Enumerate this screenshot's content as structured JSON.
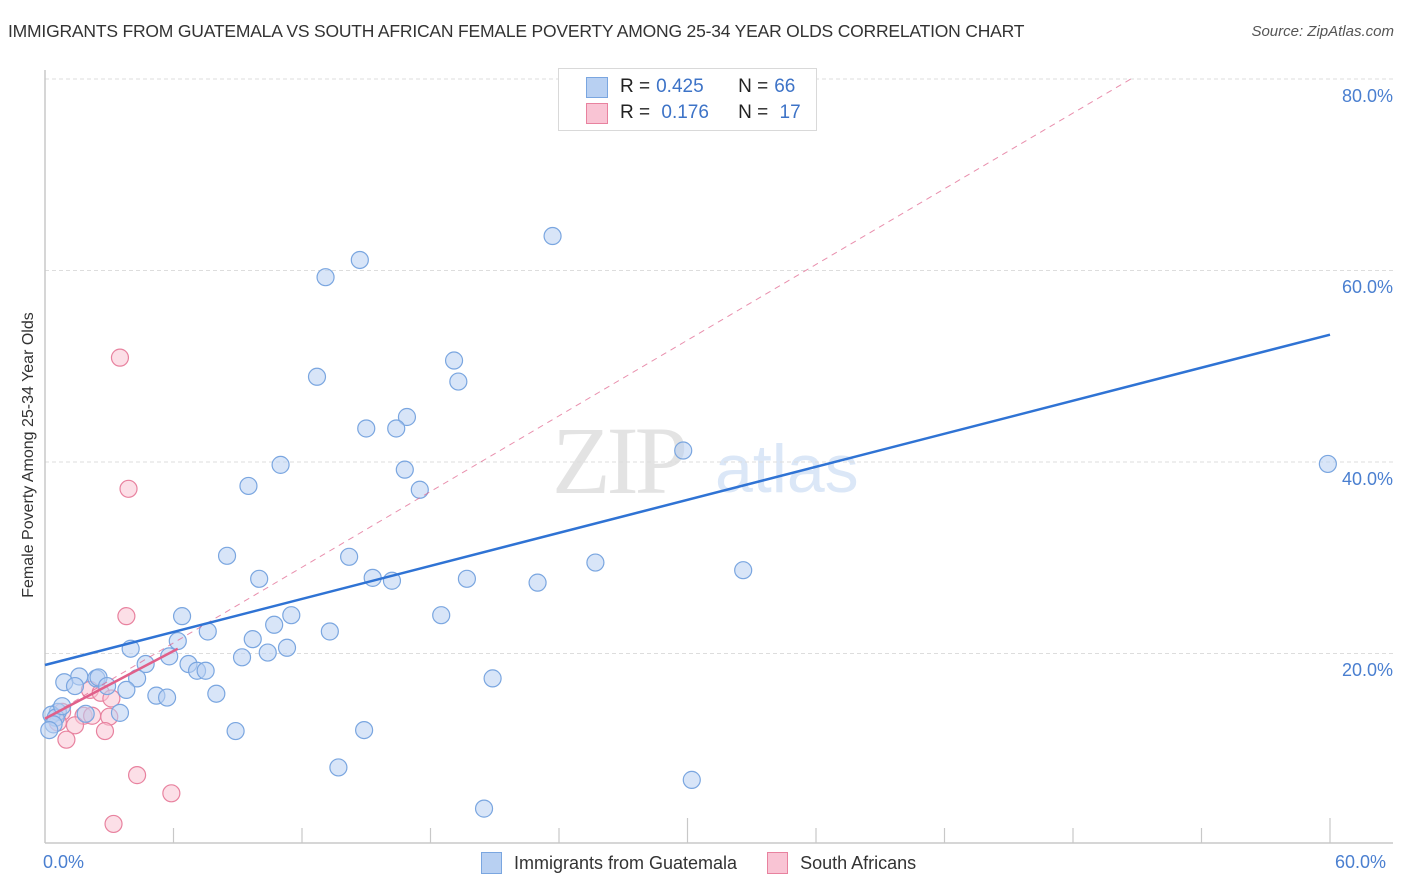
{
  "header": {
    "title": "IMMIGRANTS FROM GUATEMALA VS SOUTH AFRICAN FEMALE POVERTY AMONG 25-34 YEAR OLDS CORRELATION CHART",
    "source": "Source: ZipAtlas.com"
  },
  "axes": {
    "ylabel": "Female Poverty Among 25-34 Year Olds",
    "x_min_label": "0.0%",
    "x_max_label": "60.0%",
    "y_ticks": [
      "80.0%",
      "60.0%",
      "40.0%",
      "20.0%"
    ]
  },
  "legend": {
    "rows": [
      {
        "r_label": "R = ",
        "r_value": "0.425",
        "n_label": "N = ",
        "n_value": "66"
      },
      {
        "r_label": "R = ",
        "r_value": " 0.176",
        "n_label": "N = ",
        "n_value": " 17"
      }
    ],
    "series": [
      {
        "label": "Immigrants from Guatemala",
        "fill": "#b8d0f2",
        "stroke": "#7aa6e0"
      },
      {
        "label": "South Africans",
        "fill": "#f9c4d4",
        "stroke": "#e8829f"
      }
    ]
  },
  "watermark": {
    "zip": "ZIP",
    "atlas": "atlas"
  },
  "colors": {
    "blue_line": "#2f73d4",
    "pink_line": "#e0608a",
    "tick_label": "#4a7fd0",
    "grid": "#dddddd"
  },
  "chart_data": {
    "type": "scatter",
    "title": "IMMIGRANTS FROM GUATEMALA VS SOUTH AFRICAN FEMALE POVERTY AMONG 25-34 YEAR OLDS CORRELATION CHART",
    "xlabel": "",
    "ylabel": "Female Poverty Among 25-34 Year Olds",
    "xlim": [
      0,
      60
    ],
    "ylim": [
      0,
      80
    ],
    "x_ticks": [
      0,
      60
    ],
    "y_ticks": [
      20,
      40,
      60,
      80
    ],
    "grid": true,
    "legend_position": "top-center and bottom",
    "series": [
      {
        "name": "Immigrants from Guatemala",
        "R": 0.425,
        "N": 66,
        "trend": {
          "x": [
            0,
            60
          ],
          "y": [
            18.8,
            53.3
          ]
        },
        "points": [
          [
            23.7,
            63.6
          ],
          [
            14.7,
            61.1
          ],
          [
            13.1,
            59.3
          ],
          [
            19.1,
            50.6
          ],
          [
            19.3,
            48.4
          ],
          [
            12.7,
            48.9
          ],
          [
            16.9,
            44.7
          ],
          [
            15.0,
            43.5
          ],
          [
            16.4,
            43.5
          ],
          [
            29.8,
            41.2
          ],
          [
            59.9,
            39.8
          ],
          [
            11.0,
            39.7
          ],
          [
            16.8,
            39.2
          ],
          [
            17.5,
            37.1
          ],
          [
            9.5,
            37.5
          ],
          [
            8.5,
            30.2
          ],
          [
            14.2,
            30.1
          ],
          [
            25.7,
            29.5
          ],
          [
            32.6,
            28.7
          ],
          [
            10.0,
            27.8
          ],
          [
            15.3,
            27.9
          ],
          [
            16.2,
            27.6
          ],
          [
            19.7,
            27.8
          ],
          [
            23.0,
            27.4
          ],
          [
            6.4,
            23.9
          ],
          [
            11.5,
            24.0
          ],
          [
            18.5,
            24.0
          ],
          [
            7.6,
            22.3
          ],
          [
            13.3,
            22.3
          ],
          [
            10.7,
            23.0
          ],
          [
            6.2,
            21.3
          ],
          [
            9.7,
            21.5
          ],
          [
            11.3,
            20.6
          ],
          [
            4.0,
            20.5
          ],
          [
            9.2,
            19.6
          ],
          [
            10.4,
            20.1
          ],
          [
            5.8,
            19.7
          ],
          [
            4.7,
            18.9
          ],
          [
            6.7,
            18.9
          ],
          [
            7.1,
            18.2
          ],
          [
            7.5,
            18.2
          ],
          [
            20.9,
            17.4
          ],
          [
            1.6,
            17.6
          ],
          [
            2.4,
            17.4
          ],
          [
            2.5,
            17.5
          ],
          [
            4.3,
            17.4
          ],
          [
            0.9,
            17.0
          ],
          [
            1.4,
            16.6
          ],
          [
            2.9,
            16.6
          ],
          [
            3.8,
            16.2
          ],
          [
            5.2,
            15.6
          ],
          [
            5.7,
            15.4
          ],
          [
            8.0,
            15.8
          ],
          [
            0.6,
            13.9
          ],
          [
            0.3,
            13.6
          ],
          [
            3.5,
            13.8
          ],
          [
            1.9,
            13.7
          ],
          [
            0.5,
            13.3
          ],
          [
            8.9,
            11.9
          ],
          [
            14.9,
            12.0
          ],
          [
            13.7,
            8.1
          ],
          [
            30.2,
            6.8
          ],
          [
            20.5,
            3.8
          ],
          [
            0.4,
            12.6
          ],
          [
            0.2,
            12.0
          ],
          [
            0.8,
            14.5
          ]
        ]
      },
      {
        "name": "South Africans",
        "R": 0.176,
        "N": 17,
        "trend": {
          "x": [
            0,
            6.2
          ],
          "y": [
            13.2,
            20.5
          ]
        },
        "trend_extended": {
          "x": [
            0,
            50.7
          ],
          "y": [
            13.2,
            80
          ]
        },
        "points": [
          [
            3.5,
            50.9
          ],
          [
            3.9,
            37.2
          ],
          [
            3.8,
            23.9
          ],
          [
            2.1,
            16.2
          ],
          [
            2.6,
            15.9
          ],
          [
            3.1,
            15.3
          ],
          [
            1.8,
            13.5
          ],
          [
            2.2,
            13.5
          ],
          [
            3.0,
            13.4
          ],
          [
            0.8,
            13.9
          ],
          [
            0.6,
            12.8
          ],
          [
            1.4,
            12.5
          ],
          [
            2.8,
            11.9
          ],
          [
            1.0,
            11.0
          ],
          [
            4.3,
            7.3
          ],
          [
            5.9,
            5.4
          ],
          [
            3.2,
            2.2
          ]
        ]
      }
    ]
  }
}
